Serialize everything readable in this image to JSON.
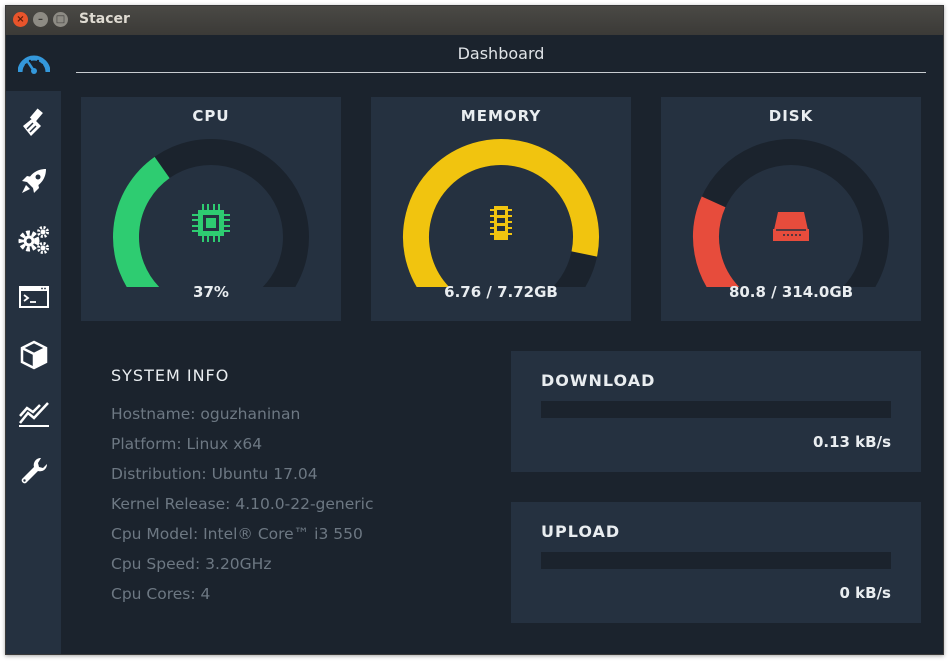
{
  "window": {
    "title": "Stacer",
    "close_glyph": "×",
    "min_glyph": "–",
    "max_glyph": "□"
  },
  "sidebar": {
    "items": [
      {
        "name": "dashboard",
        "icon": "gauge-icon",
        "active": true
      },
      {
        "name": "system-cleaner",
        "icon": "broom-icon",
        "active": false
      },
      {
        "name": "startup-apps",
        "icon": "rocket-icon",
        "active": false
      },
      {
        "name": "services",
        "icon": "gears-icon",
        "active": false
      },
      {
        "name": "processes",
        "icon": "terminal-window-icon",
        "active": false
      },
      {
        "name": "uninstaller",
        "icon": "package-box-icon",
        "active": false
      },
      {
        "name": "resources",
        "icon": "line-chart-icon",
        "active": false
      },
      {
        "name": "settings",
        "icon": "wrench-icon",
        "active": false
      }
    ]
  },
  "header": {
    "title": "Dashboard"
  },
  "gauges": {
    "cpu": {
      "title": "CPU",
      "value_text": "37%",
      "fraction": 0.37,
      "color": "#2ecc71",
      "icon": "cpu-chip-icon"
    },
    "memory": {
      "title": "MEMORY",
      "value_text": "6.76 / 7.72GB",
      "fraction": 0.876,
      "color": "#f1c40f",
      "icon": "ram-module-icon"
    },
    "disk": {
      "title": "DISK",
      "value_text": "80.8 / 314.0GB",
      "fraction": 0.257,
      "color": "#e74c3c",
      "icon": "hard-drive-icon"
    }
  },
  "system_info": {
    "title": "SYSTEM INFO",
    "lines": [
      "Hostname: oguzhaninan",
      "Platform: Linux x64",
      "Distribution: Ubuntu 17.04",
      "Kernel Release: 4.10.0-22-generic",
      "Cpu Model: Intel® Core™ i3 550",
      "Cpu Speed: 3.20GHz",
      "Cpu Cores: 4"
    ]
  },
  "network": {
    "download": {
      "title": "DOWNLOAD",
      "value_text": "0.13 kB/s",
      "fraction": 0
    },
    "upload": {
      "title": "UPLOAD",
      "value_text": "0 kB/s",
      "fraction": 0
    }
  },
  "colors": {
    "background": "#1b232d",
    "panel": "#253140",
    "track": "#1b232d",
    "accent": "#2ecc71"
  }
}
